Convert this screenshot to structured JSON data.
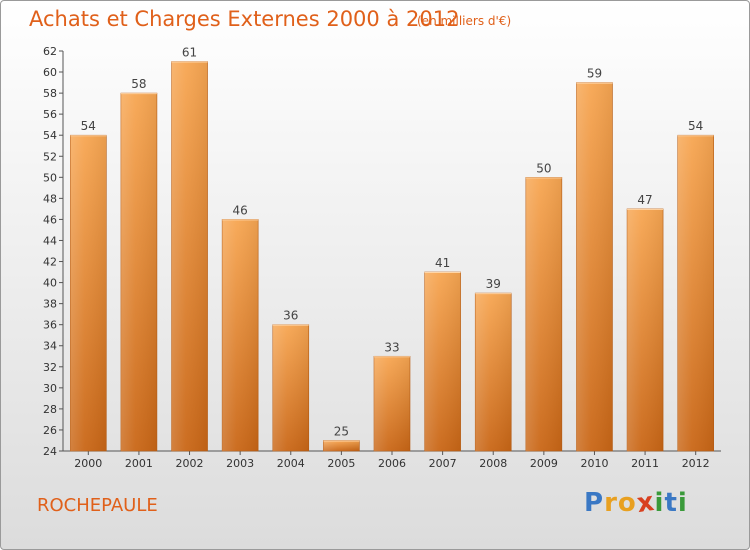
{
  "title": "Achats et Charges Externes 2000 à 2012",
  "subtitle": "(en milliers d'€)",
  "commune": "ROCHEPAULE",
  "logo": {
    "letters": [
      "P",
      "r",
      "o",
      "x",
      "i",
      "t",
      "i"
    ],
    "colors": [
      "#3a78c4",
      "#e8a020",
      "#e8a020",
      "#d84020",
      "#3a9a3a",
      "#3a78c4",
      "#3a9a3a"
    ]
  },
  "colors": {
    "accent": "#e0601a",
    "bar_top": "#f7a652",
    "bar_bottom": "#c96616",
    "label": "#444444"
  },
  "chart_data": {
    "type": "bar",
    "title": "Achats et Charges Externes 2000 à 2012",
    "subtitle": "(en milliers d'€)",
    "categories": [
      "2000",
      "2001",
      "2002",
      "2003",
      "2004",
      "2005",
      "2006",
      "2007",
      "2008",
      "2009",
      "2010",
      "2011",
      "2012"
    ],
    "values": [
      54,
      58,
      61,
      46,
      36,
      25,
      33,
      41,
      39,
      50,
      59,
      47,
      54
    ],
    "ylim": [
      24,
      62
    ],
    "yticks": [
      24,
      26,
      28,
      30,
      32,
      34,
      36,
      38,
      40,
      42,
      44,
      46,
      48,
      50,
      52,
      54,
      56,
      58,
      60,
      62
    ],
    "grid": false,
    "data_labels": true
  }
}
